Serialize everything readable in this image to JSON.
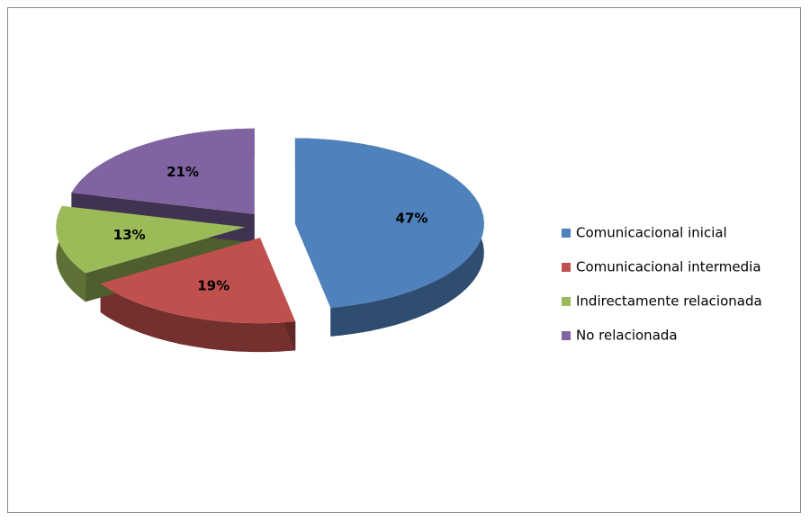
{
  "chart_data": {
    "type": "pie3d",
    "categories": [
      "Comunicacional inicial",
      "Comunicacional intermedia",
      "Indirectamente relacionada",
      "No relacionada"
    ],
    "values": [
      47,
      19,
      13,
      21
    ],
    "value_labels": [
      "47%",
      "19%",
      "13%",
      "21%"
    ],
    "colors": [
      "#4f81bd",
      "#c0504d",
      "#9bbb59",
      "#8064a2"
    ],
    "legend": "right"
  }
}
